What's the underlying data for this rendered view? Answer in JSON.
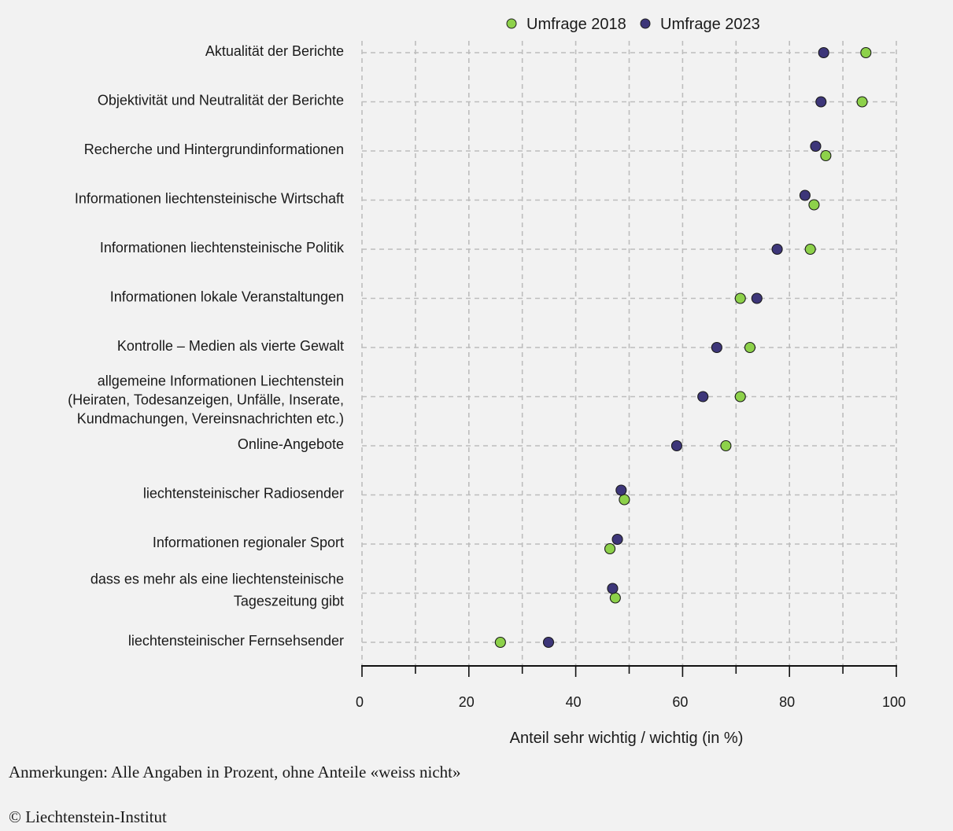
{
  "chart_data": {
    "type": "scatter",
    "orientation": "horizontal-dot-plot",
    "categories": [
      [
        "Aktualität der Berichte"
      ],
      [
        "Objektivität und Neutralität der Berichte"
      ],
      [
        "Recherche und Hintergrundinformationen"
      ],
      [
        "Informationen liechtensteinische Wirtschaft"
      ],
      [
        "Informationen liechtensteinische Politik"
      ],
      [
        "Informationen lokale Veranstaltungen"
      ],
      [
        "Kontrolle – Medien als vierte Gewalt"
      ],
      [
        "allgemeine Informationen Liechtenstein",
        "(Heiraten, Todesanzeigen, Unfälle, Inserate,",
        "Kundmachungen, Vereinsnachrichten etc.)"
      ],
      [
        "Online-Angebote"
      ],
      [
        "liechtensteinischer Radiosender"
      ],
      [
        "Informationen regionaler Sport"
      ],
      [
        "dass es mehr als eine liechtensteinische",
        "Tageszeitung gibt"
      ],
      [
        "liechtensteinischer Fernsehsender"
      ]
    ],
    "series": [
      {
        "name": "Umfrage 2018",
        "color": "#8dd14a",
        "values": [
          94.3,
          93.6,
          86.8,
          84.6,
          83.9,
          70.8,
          72.6,
          70.8,
          68.1,
          49.1,
          46.4,
          47.4,
          25.9
        ]
      },
      {
        "name": "Umfrage 2023",
        "color": "#3d3679",
        "values": [
          86.4,
          85.9,
          84.9,
          82.9,
          77.7,
          73.9,
          66.4,
          63.8,
          58.9,
          48.5,
          47.8,
          46.9,
          34.9
        ]
      }
    ],
    "xlabel": "Anteil sehr wichtig / wichtig (in %)",
    "xlim": [
      0,
      100
    ],
    "xticks": [
      0,
      20,
      40,
      60,
      80,
      100
    ],
    "grid": true,
    "legend_position": "top-right"
  },
  "footer": {
    "note": "Anmerkungen: Alle Angaben in Prozent, ohne Anteile «weiss nicht»",
    "copyright": "© Liechtenstein-Institut"
  }
}
